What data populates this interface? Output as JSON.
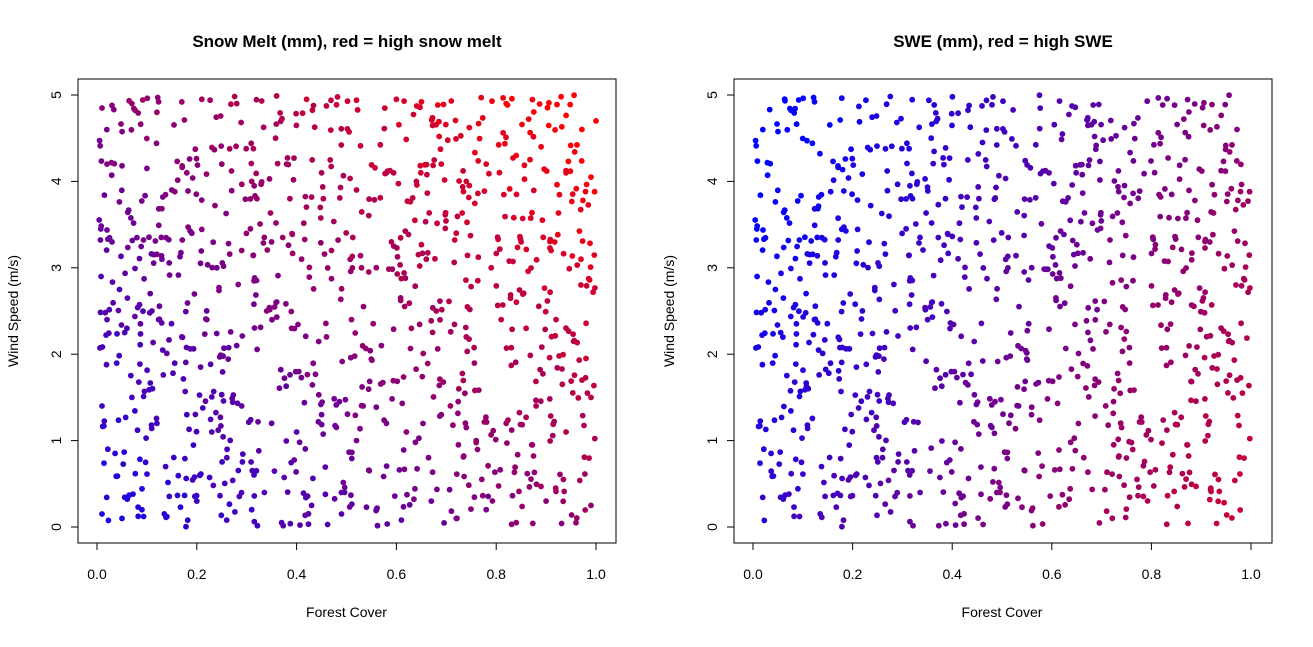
{
  "chart_data": [
    {
      "type": "scatter",
      "title": "Snow Melt (mm), red = high snow melt",
      "xlabel": "Forest Cover",
      "ylabel": "Wind Speed (m/s)",
      "xlim": [
        0,
        1
      ],
      "ylim": [
        0,
        5
      ],
      "xticks": [
        "0.0",
        "0.2",
        "0.4",
        "0.6",
        "0.8",
        "1.0"
      ],
      "yticks": [
        "0",
        "1",
        "2",
        "3",
        "4",
        "5"
      ],
      "grid": false,
      "legend": "none",
      "color_low": "#0000ff",
      "color_high": "#ff0000",
      "color_rule": "red = high snow melt; increases with forest cover and wind speed",
      "n_points": 1000,
      "points": [
        [
          0.01,
          4.85
        ],
        [
          0.03,
          4.88
        ],
        [
          0.07,
          4.9
        ],
        [
          0.12,
          4.8
        ],
        [
          0.17,
          4.92
        ],
        [
          0.21,
          4.95
        ],
        [
          0.28,
          4.9
        ],
        [
          0.33,
          4.93
        ],
        [
          0.36,
          4.99
        ],
        [
          0.42,
          4.95
        ],
        [
          0.52,
          4.94
        ],
        [
          0.6,
          4.95
        ],
        [
          0.65,
          4.92
        ],
        [
          0.71,
          4.93
        ],
        [
          0.77,
          4.97
        ],
        [
          0.82,
          4.9
        ],
        [
          0.93,
          4.98
        ],
        [
          1.0,
          4.7
        ],
        [
          0.02,
          4.2
        ],
        [
          0.05,
          4.18
        ],
        [
          0.1,
          4.15
        ],
        [
          0.15,
          3.9
        ],
        [
          0.18,
          4.1
        ],
        [
          0.25,
          4.2
        ],
        [
          0.31,
          4.0
        ],
        [
          0.38,
          4.2
        ],
        [
          0.45,
          4.1
        ],
        [
          0.52,
          3.9
        ],
        [
          0.58,
          4.1
        ],
        [
          0.64,
          4.0
        ],
        [
          0.69,
          4.2
        ],
        [
          0.74,
          4.0
        ],
        [
          0.78,
          4.2
        ],
        [
          0.84,
          4.3
        ],
        [
          0.89,
          4.4
        ],
        [
          0.94,
          4.1
        ],
        [
          0.99,
          4.05
        ],
        [
          0.03,
          3.3
        ],
        [
          0.08,
          3.35
        ],
        [
          0.13,
          3.1
        ],
        [
          0.19,
          3.4
        ],
        [
          0.24,
          3.0
        ],
        [
          0.29,
          3.2
        ],
        [
          0.35,
          3.3
        ],
        [
          0.41,
          3.1
        ],
        [
          0.47,
          3.2
        ],
        [
          0.53,
          3.0
        ],
        [
          0.59,
          3.3
        ],
        [
          0.66,
          3.1
        ],
        [
          0.72,
          3.4
        ],
        [
          0.79,
          3.0
        ],
        [
          0.85,
          3.3
        ],
        [
          0.91,
          3.2
        ],
        [
          0.97,
          3.1
        ],
        [
          0.02,
          2.4
        ],
        [
          0.06,
          2.3
        ],
        [
          0.11,
          2.5
        ],
        [
          0.17,
          2.2
        ],
        [
          0.22,
          2.4
        ],
        [
          0.28,
          2.1
        ],
        [
          0.34,
          2.5
        ],
        [
          0.39,
          2.3
        ],
        [
          0.46,
          2.2
        ],
        [
          0.51,
          2.4
        ],
        [
          0.57,
          2.1
        ],
        [
          0.63,
          2.3
        ],
        [
          0.68,
          2.5
        ],
        [
          0.74,
          2.2
        ],
        [
          0.81,
          2.4
        ],
        [
          0.86,
          2.3
        ],
        [
          0.92,
          2.4
        ],
        [
          0.98,
          1.95
        ],
        [
          0.01,
          1.4
        ],
        [
          0.07,
          1.5
        ],
        [
          0.12,
          1.2
        ],
        [
          0.18,
          1.3
        ],
        [
          0.23,
          1.1
        ],
        [
          0.29,
          1.4
        ],
        [
          0.35,
          1.2
        ],
        [
          0.4,
          1.1
        ],
        [
          0.45,
          1.3
        ],
        [
          0.52,
          1.0
        ],
        [
          0.58,
          1.2
        ],
        [
          0.62,
          1.1
        ],
        [
          0.69,
          1.3
        ],
        [
          0.76,
          1.0
        ],
        [
          0.82,
          1.2
        ],
        [
          0.88,
          1.4
        ],
        [
          0.94,
          1.1
        ],
        [
          0.99,
          1.5
        ],
        [
          0.01,
          0.15
        ],
        [
          0.05,
          0.1
        ],
        [
          0.09,
          0.2
        ],
        [
          0.14,
          0.12
        ],
        [
          0.2,
          0.3
        ],
        [
          0.26,
          0.08
        ],
        [
          0.31,
          0.2
        ],
        [
          0.37,
          0.05
        ],
        [
          0.43,
          0.25
        ],
        [
          0.49,
          0.15
        ],
        [
          0.56,
          0.2
        ],
        [
          0.61,
          0.08
        ],
        [
          0.67,
          0.3
        ],
        [
          0.72,
          0.1
        ],
        [
          0.78,
          0.2
        ],
        [
          0.84,
          0.05
        ],
        [
          0.9,
          0.3
        ],
        [
          0.96,
          0.05
        ],
        [
          0.99,
          0.25
        ]
      ]
    },
    {
      "type": "scatter",
      "title": "SWE (mm), red = high SWE",
      "xlabel": "Forest Cover",
      "ylabel": "Wind Speed (m/s)",
      "xlim": [
        0,
        1
      ],
      "ylim": [
        0,
        5
      ],
      "xticks": [
        "0.0",
        "0.2",
        "0.4",
        "0.6",
        "0.8",
        "1.0"
      ],
      "yticks": [
        "0",
        "1",
        "2",
        "3",
        "4",
        "5"
      ],
      "grid": false,
      "legend": "none",
      "color_low": "#0000ff",
      "color_high": "#ff0000",
      "color_rule": "red = high SWE; increases with forest cover, decreases with wind speed",
      "n_points": 1000
    }
  ]
}
